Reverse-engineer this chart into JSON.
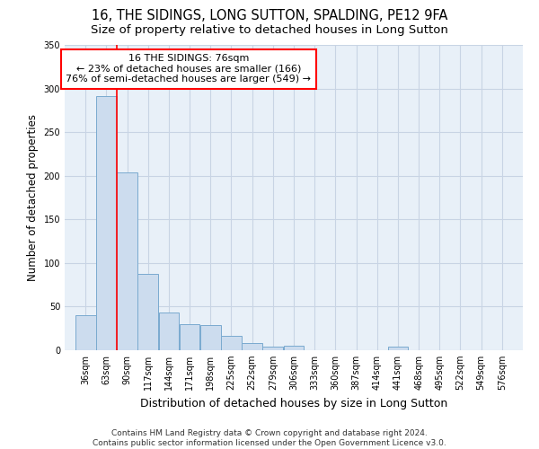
{
  "title": "16, THE SIDINGS, LONG SUTTON, SPALDING, PE12 9FA",
  "subtitle": "Size of property relative to detached houses in Long Sutton",
  "xlabel": "Distribution of detached houses by size in Long Sutton",
  "ylabel": "Number of detached properties",
  "footer_line1": "Contains HM Land Registry data © Crown copyright and database right 2024.",
  "footer_line2": "Contains public sector information licensed under the Open Government Licence v3.0.",
  "bar_color": "#ccdcee",
  "bar_edge_color": "#7aaacf",
  "grid_color": "#c8d4e4",
  "background_color": "#ffffff",
  "ax_background_color": "#e8f0f8",
  "red_line_x": 76,
  "annotation_line1": "16 THE SIDINGS: 76sqm",
  "annotation_line2": "← 23% of detached houses are smaller (166)",
  "annotation_line3": "76% of semi-detached houses are larger (549) →",
  "annotation_box_color": "white",
  "annotation_box_edge": "red",
  "categories": [
    36,
    63,
    90,
    117,
    144,
    171,
    198,
    225,
    252,
    279,
    306,
    333,
    360,
    387,
    414,
    441,
    468,
    495,
    522,
    549,
    576
  ],
  "values": [
    40,
    291,
    204,
    87,
    43,
    30,
    29,
    16,
    8,
    4,
    5,
    0,
    0,
    0,
    0,
    4,
    0,
    0,
    0,
    0,
    0
  ],
  "bin_width": 27,
  "ylim": [
    0,
    350
  ],
  "yticks": [
    0,
    50,
    100,
    150,
    200,
    250,
    300,
    350
  ],
  "title_fontsize": 10.5,
  "subtitle_fontsize": 9.5,
  "xlabel_fontsize": 9,
  "ylabel_fontsize": 8.5,
  "tick_fontsize": 7,
  "annotation_fontsize": 8,
  "footer_fontsize": 6.5
}
